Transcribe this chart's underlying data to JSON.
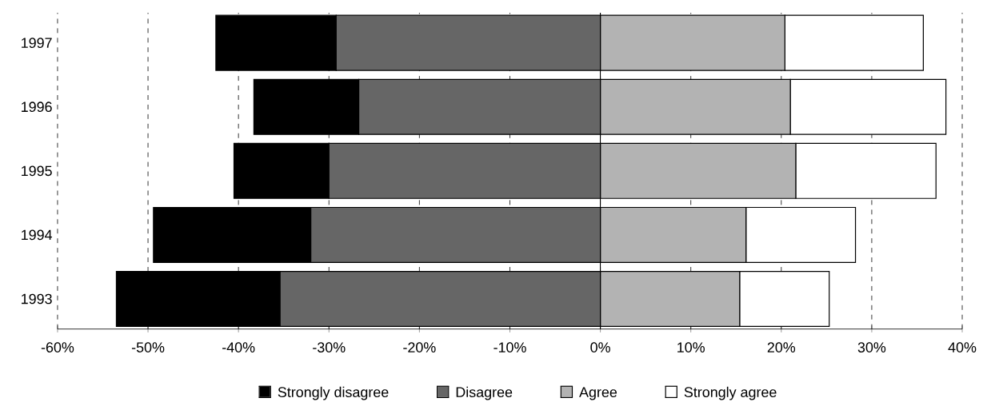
{
  "chart_data": {
    "type": "bar",
    "orientation": "horizontal",
    "stacked": true,
    "categories": [
      "1997",
      "1996",
      "1995",
      "1994",
      "1993"
    ],
    "series": [
      {
        "name": "Strongly disagree",
        "color": "#000000",
        "values": [
          -13.3,
          -11.6,
          -10.5,
          -17.4,
          -18.1
        ]
      },
      {
        "name": "Disagree",
        "color": "#666666",
        "values": [
          -29.2,
          -26.7,
          -30.0,
          -32.0,
          -35.4
        ]
      },
      {
        "name": "Agree",
        "color": "#b3b3b3",
        "values": [
          20.4,
          21.0,
          21.6,
          16.1,
          15.4
        ]
      },
      {
        "name": "Strongly agree",
        "color": "#ffffff",
        "values": [
          15.3,
          17.2,
          15.5,
          12.1,
          9.9
        ]
      }
    ],
    "xlim": [
      -60,
      40
    ],
    "xticks": [
      {
        "value": -60,
        "label": "-60%"
      },
      {
        "value": -50,
        "label": "-50%"
      },
      {
        "value": -40,
        "label": "-40%"
      },
      {
        "value": -30,
        "label": "-30%"
      },
      {
        "value": -20,
        "label": "-20%"
      },
      {
        "value": -10,
        "label": "-10%"
      },
      {
        "value": 0,
        "label": "0%"
      },
      {
        "value": 10,
        "label": "10%"
      },
      {
        "value": 20,
        "label": "20%"
      },
      {
        "value": 30,
        "label": "30%"
      },
      {
        "value": 40,
        "label": "40%"
      }
    ],
    "grid": "x",
    "legend": "bottom"
  }
}
